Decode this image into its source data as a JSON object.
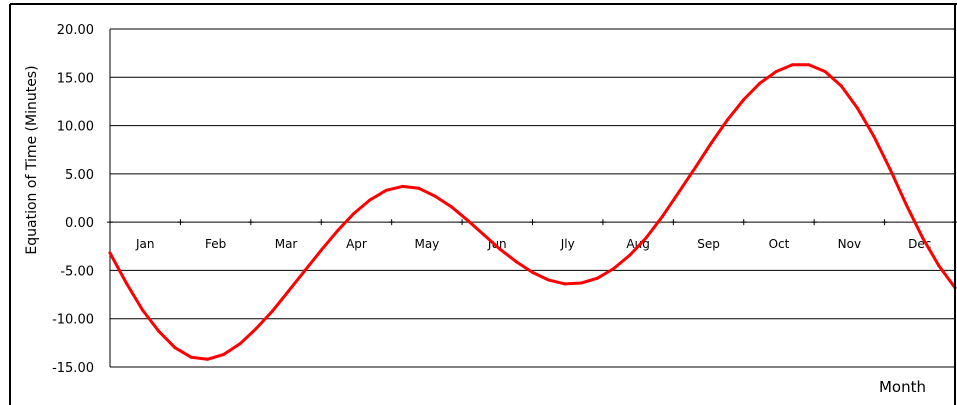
{
  "chart_data": {
    "type": "line",
    "title": "",
    "xlabel": "Month",
    "ylabel": "Equation of Time (Minutes)",
    "ylim": [
      -15,
      20
    ],
    "yticks": [
      "20.00",
      "15.00",
      "10.00",
      "5.00",
      "0.00",
      "-5.00",
      "-10.00",
      "-15.00"
    ],
    "categories": [
      "Jan",
      "Feb",
      "Mar",
      "Apr",
      "May",
      "Jun",
      "Jly",
      "Aug",
      "Sep",
      "Oct",
      "Nov",
      "Dec"
    ],
    "grid": true,
    "series_color": "#ff0000",
    "series": [
      {
        "x": [
          1,
          8,
          15,
          22,
          29,
          36,
          43,
          50,
          57,
          64,
          71,
          78,
          85,
          92,
          99,
          106,
          113,
          120,
          127,
          134,
          141,
          148,
          155,
          162,
          169,
          176,
          183,
          190,
          197,
          204,
          211,
          218,
          225,
          232,
          239,
          246,
          253,
          260,
          267,
          274,
          281,
          288,
          295,
          302,
          309,
          316,
          323,
          330,
          337,
          344,
          351,
          358,
          365
        ],
        "values": [
          -3.2,
          -6.3,
          -9.1,
          -11.3,
          -13.0,
          -14.0,
          -14.2,
          -13.7,
          -12.6,
          -11.0,
          -9.2,
          -7.1,
          -5.0,
          -2.9,
          -0.9,
          0.9,
          2.3,
          3.3,
          3.7,
          3.5,
          2.7,
          1.6,
          0.2,
          -1.3,
          -2.8,
          -4.1,
          -5.2,
          -6.0,
          -6.4,
          -6.3,
          -5.8,
          -4.8,
          -3.4,
          -1.6,
          0.6,
          3.1,
          5.6,
          8.2,
          10.6,
          12.7,
          14.4,
          15.6,
          16.3,
          16.3,
          15.6,
          14.1,
          11.8,
          8.9,
          5.5,
          1.8,
          -1.6,
          -4.5,
          -6.8
        ]
      }
    ]
  }
}
